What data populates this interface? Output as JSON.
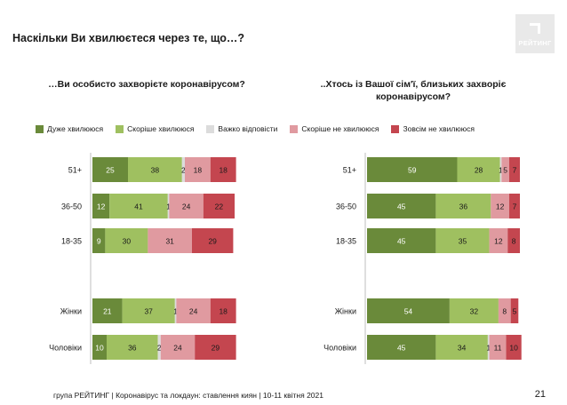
{
  "title": "Наскільки Ви хвилюєтеся через те, що…?",
  "logo_text": "РЕЙТИНГ",
  "footer": "група РЕЙТИНГ | Коронавірус та локдаун: ставлення киян | 10-11 квітня 2021",
  "page_number": "21",
  "colors": [
    "#6a8a3a",
    "#9fc060",
    "#dcdcdc",
    "#e09aa0",
    "#c4464f"
  ],
  "chart_data": [
    {
      "type": "bar",
      "stacked": true,
      "orientation": "horizontal",
      "title": "…Ви особисто захворієте коронавірусом?",
      "categories": [
        "51+",
        "36-50",
        "18-35",
        "Жінки",
        "Чоловіки"
      ],
      "series": [
        {
          "name": "Дуже хвилююся",
          "values": [
            25,
            12,
            9,
            21,
            10
          ]
        },
        {
          "name": "Скоріше хвилююся",
          "values": [
            38,
            41,
            30,
            37,
            36
          ]
        },
        {
          "name": "Важко відповісти",
          "values": [
            2,
            1,
            0,
            1,
            2
          ]
        },
        {
          "name": "Скоріше не хвилююся",
          "values": [
            18,
            24,
            31,
            24,
            24
          ]
        },
        {
          "name": "Зовсім не хвилююся",
          "values": [
            18,
            22,
            29,
            18,
            29
          ]
        }
      ],
      "xlim": [
        0,
        100
      ],
      "legend": "top"
    },
    {
      "type": "bar",
      "stacked": true,
      "orientation": "horizontal",
      "title": "..Хтось із Вашої сім'ї, близьких захворіє коронавірусом?",
      "categories": [
        "51+",
        "36-50",
        "18-35",
        "Жінки",
        "Чоловіки"
      ],
      "series": [
        {
          "name": "Дуже хвилююся",
          "values": [
            59,
            45,
            45,
            54,
            45
          ]
        },
        {
          "name": "Скоріше хвилююся",
          "values": [
            28,
            36,
            35,
            32,
            34
          ]
        },
        {
          "name": "Важко відповісти",
          "values": [
            1,
            0,
            0,
            0,
            1
          ]
        },
        {
          "name": "Скоріше не хвилююся",
          "values": [
            5,
            12,
            12,
            8,
            11
          ]
        },
        {
          "name": "Зовсім не хвилююся",
          "values": [
            7,
            7,
            8,
            5,
            10
          ]
        }
      ],
      "xlim": [
        0,
        100
      ],
      "legend": "top"
    }
  ]
}
